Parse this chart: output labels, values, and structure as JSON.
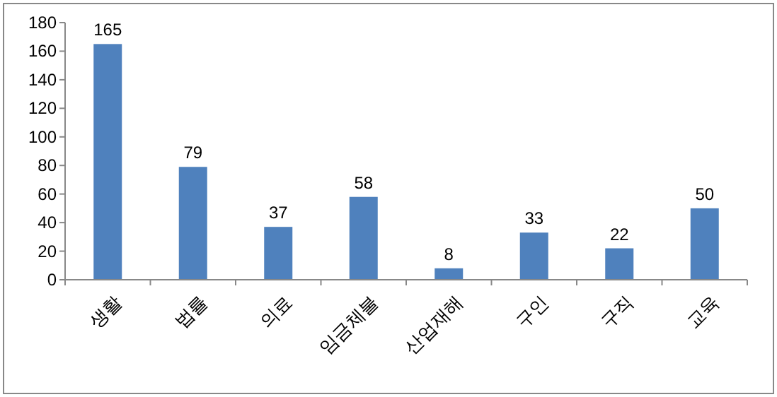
{
  "chart_data": {
    "type": "bar",
    "categories": [
      "생활",
      "법률",
      "의료",
      "임금체불",
      "산업재해",
      "구인",
      "구직",
      "교육"
    ],
    "values": [
      165,
      79,
      37,
      58,
      8,
      33,
      22,
      50
    ],
    "color": "#4f81bd",
    "ylim": [
      0,
      180
    ],
    "yticks": [
      0,
      20,
      40,
      60,
      80,
      100,
      120,
      140,
      160,
      180
    ],
    "data_labels": true,
    "grid": false
  }
}
